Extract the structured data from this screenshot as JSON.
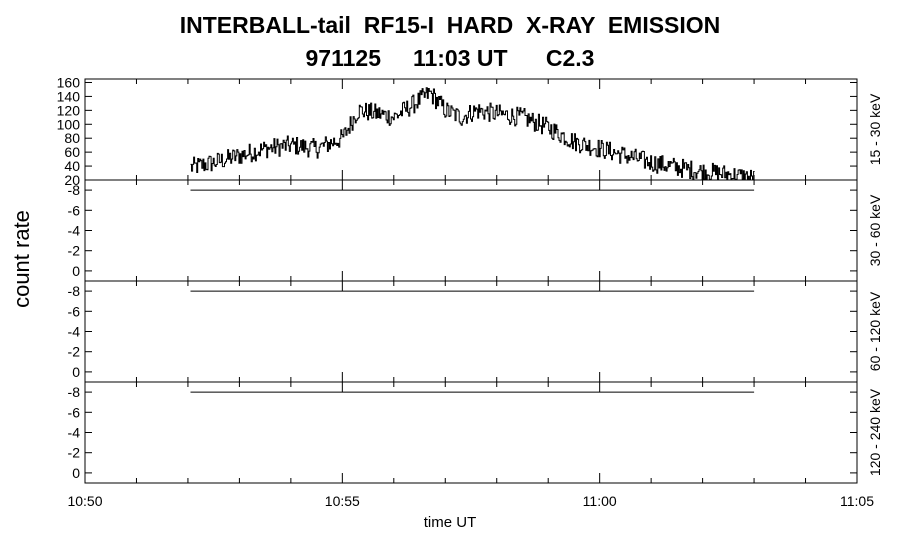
{
  "chart_data": {
    "type": "line",
    "title": "INTERBALL-tail  RF15-I  HARD  X-RAY  EMISSION",
    "subtitle": "971125     11:03 UT      C2.3",
    "xlabel": "time UT",
    "ylabel": "count rate",
    "x_ticks": [
      "10:50",
      "10:55",
      "11:00",
      "11:05"
    ],
    "x_range_min": [
      0,
      15
    ],
    "panels": [
      {
        "band": "15 - 30 keV",
        "ylim": [
          20,
          165
        ],
        "yticks": [
          "20",
          "40",
          "60",
          "80",
          "100",
          "120",
          "140",
          "160"
        ],
        "ytick_values": [
          20,
          40,
          60,
          80,
          100,
          120,
          140,
          160
        ],
        "series": [
          {
            "x_min": [
              2.05,
              2.5,
              3.0,
              3.5,
              4.0,
              4.5,
              5.0,
              5.3,
              5.7,
              6.0,
              6.3,
              6.7,
              7.0,
              7.3,
              7.6,
              8.0,
              8.5,
              9.0,
              9.5,
              10.0,
              10.5,
              11.0,
              11.5,
              12.0,
              12.5,
              13.0
            ],
            "y": [
              38,
              45,
              55,
              65,
              70,
              65,
              80,
              120,
              115,
              110,
              125,
              145,
              120,
              110,
              120,
              115,
              110,
              95,
              75,
              65,
              55,
              45,
              38,
              32,
              28,
              22
            ],
            "noise": 14
          }
        ]
      },
      {
        "band": "30 - 60 keV",
        "ylim": [
          -1,
          9
        ],
        "yticks": [
          "-8",
          "-6",
          "-4",
          "-2",
          "0"
        ],
        "ytick_values": [
          8,
          6,
          4,
          2,
          0
        ],
        "series": [
          {
            "x_min": [
              2.05,
              13.0
            ],
            "y": [
              8.0,
              8.0
            ],
            "noise": 0
          }
        ]
      },
      {
        "band": "60 - 120 keV",
        "ylim": [
          -1,
          9
        ],
        "yticks": [
          "-8",
          "-6",
          "-4",
          "-2",
          "0"
        ],
        "ytick_values": [
          8,
          6,
          4,
          2,
          0
        ],
        "series": [
          {
            "x_min": [
              2.05,
              13.0
            ],
            "y": [
              8.0,
              8.0
            ],
            "noise": 0
          }
        ]
      },
      {
        "band": "120 - 240 keV",
        "ylim": [
          -1,
          9
        ],
        "yticks": [
          "-8",
          "-6",
          "-4",
          "-2",
          "0"
        ],
        "ytick_values": [
          8,
          6,
          4,
          2,
          0
        ],
        "series": [
          {
            "x_min": [
              2.05,
              13.0
            ],
            "y": [
              8.0,
              8.0
            ],
            "noise": 0
          }
        ]
      }
    ]
  }
}
